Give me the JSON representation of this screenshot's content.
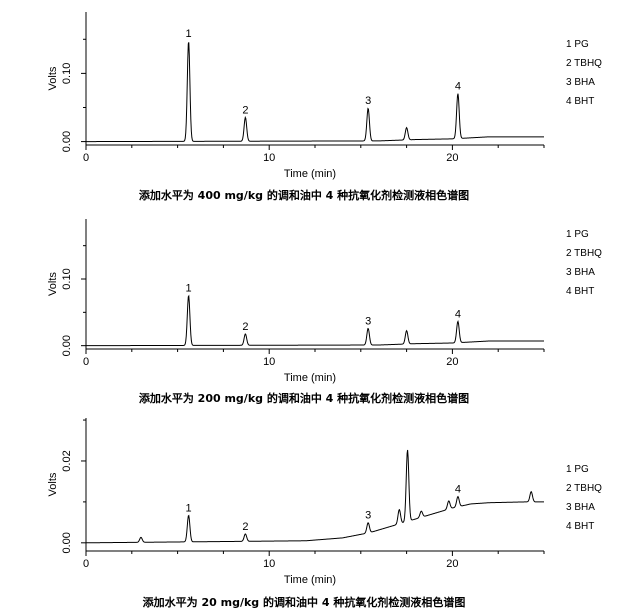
{
  "chart_data": [
    {
      "type": "line",
      "caption": "添加水平为 400 mg/kg 的调和油中 4 种抗氧化剂检测液相色谱图",
      "xlabel": "Time (min)",
      "ylabel": "Volts",
      "xlim": [
        0,
        25
      ],
      "ylim": [
        -0.005,
        0.19
      ],
      "x_ticks": [
        "0",
        "10",
        "20"
      ],
      "x_tick_values": [
        0,
        10,
        20
      ],
      "y_ticks": [
        "0.00",
        "0.10"
      ],
      "y_tick_values": [
        0.0,
        0.1
      ],
      "legend": [
        "1 PG",
        "2 TBHQ",
        "3 BHA",
        "4 BHT"
      ],
      "baseline": [
        [
          0,
          0.0
        ],
        [
          16,
          0.001
        ],
        [
          18,
          0.003
        ],
        [
          20,
          0.004
        ],
        [
          22,
          0.007
        ],
        [
          25,
          0.007
        ]
      ],
      "peaks": [
        {
          "label": "1",
          "x": 5.6,
          "height": 0.147
        },
        {
          "label": "2",
          "x": 8.7,
          "height": 0.035
        },
        {
          "label": "3",
          "x": 15.4,
          "height": 0.048
        },
        {
          "label": "",
          "x": 17.5,
          "height": 0.018
        },
        {
          "label": "4",
          "x": 20.3,
          "height": 0.066
        }
      ]
    },
    {
      "type": "line",
      "caption": "添加水平为 200 mg/kg 的调和油中 4 种抗氧化剂检测液相色谱图",
      "xlabel": "Time (min)",
      "ylabel": "Volts",
      "xlim": [
        0,
        25
      ],
      "ylim": [
        -0.005,
        0.19
      ],
      "x_ticks": [
        "0",
        "10",
        "20"
      ],
      "x_tick_values": [
        0,
        10,
        20
      ],
      "y_ticks": [
        "0.00",
        "0.10"
      ],
      "y_tick_values": [
        0.0,
        0.1
      ],
      "legend": [
        "1 PG",
        "2 TBHQ",
        "3 BHA",
        "4 BHT"
      ],
      "baseline": [
        [
          0,
          0.0
        ],
        [
          16,
          0.001
        ],
        [
          18,
          0.003
        ],
        [
          20,
          0.004
        ],
        [
          22,
          0.007
        ],
        [
          25,
          0.007
        ]
      ],
      "peaks": [
        {
          "label": "1",
          "x": 5.6,
          "height": 0.075
        },
        {
          "label": "2",
          "x": 8.7,
          "height": 0.017
        },
        {
          "label": "3",
          "x": 15.4,
          "height": 0.025
        },
        {
          "label": "",
          "x": 17.5,
          "height": 0.02
        },
        {
          "label": "4",
          "x": 20.3,
          "height": 0.032
        }
      ]
    },
    {
      "type": "line",
      "caption": "添加水平为 20 mg/kg 的调和油中 4 种抗氧化剂检测液相色谱图",
      "xlabel": "Time (min)",
      "ylabel": "Volts",
      "xlim": [
        0,
        25
      ],
      "ylim": [
        -0.002,
        0.0305
      ],
      "x_ticks": [
        "0",
        "10",
        "20"
      ],
      "x_tick_values": [
        0,
        10,
        20
      ],
      "y_ticks": [
        "0.00",
        "0.02"
      ],
      "y_tick_values": [
        0.0,
        0.02
      ],
      "legend": [
        "1 PG",
        "2 TBHQ",
        "3 BHA",
        "4 BHT"
      ],
      "baseline": [
        [
          0,
          0.0
        ],
        [
          12,
          0.0005
        ],
        [
          14,
          0.0012
        ],
        [
          15.5,
          0.0025
        ],
        [
          17,
          0.0045
        ],
        [
          18.5,
          0.0065
        ],
        [
          20,
          0.0085
        ],
        [
          21,
          0.0095
        ],
        [
          22,
          0.0098
        ],
        [
          24,
          0.01
        ],
        [
          25,
          0.01
        ]
      ],
      "peaks": [
        {
          "label": "",
          "x": 3.0,
          "height": 0.0012
        },
        {
          "label": "1",
          "x": 5.6,
          "height": 0.0065
        },
        {
          "label": "2",
          "x": 8.7,
          "height": 0.0018
        },
        {
          "label": "3",
          "x": 15.4,
          "height": 0.0025
        },
        {
          "label": "",
          "x": 17.1,
          "height": 0.0035
        },
        {
          "label": "",
          "x": 17.55,
          "height": 0.0175
        },
        {
          "label": "",
          "x": 18.3,
          "height": 0.0015
        },
        {
          "label": "",
          "x": 19.8,
          "height": 0.002
        },
        {
          "label": "4",
          "x": 20.3,
          "height": 0.0025
        },
        {
          "label": "",
          "x": 24.3,
          "height": 0.0025
        }
      ]
    }
  ]
}
